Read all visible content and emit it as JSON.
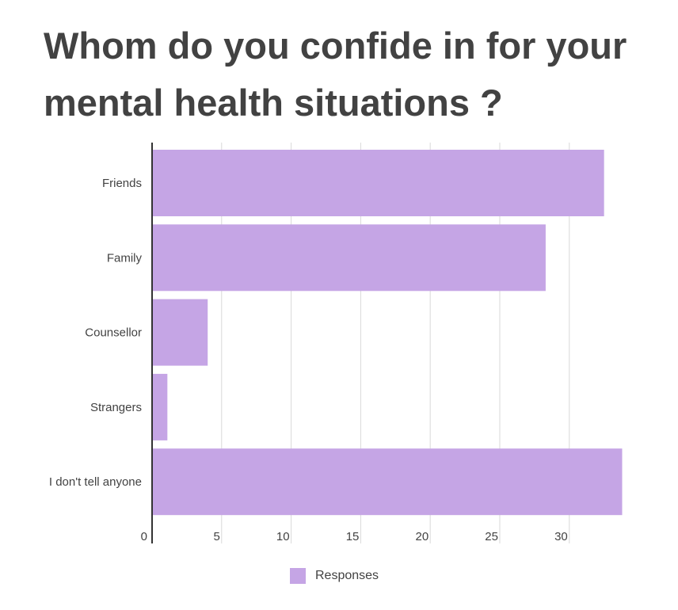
{
  "chart_data": {
    "type": "bar",
    "orientation": "horizontal",
    "title": "Whom do you confide in for your mental health situations ?",
    "categories": [
      "Friends",
      "Family",
      "Counsellor",
      "Strangers",
      "I don't tell anyone"
    ],
    "series": [
      {
        "name": "Responses",
        "values": [
          32.5,
          28.3,
          4,
          1.1,
          33.8
        ]
      }
    ],
    "xlim": [
      0,
      34
    ],
    "xticks": [
      0,
      5,
      10,
      15,
      20,
      25,
      30
    ],
    "grid": true,
    "legend_position": "bottom",
    "bar_color": "#c5a5e5",
    "axis_color": "#333333",
    "grid_color": "#d9d9d9",
    "text_color": "#424242"
  }
}
